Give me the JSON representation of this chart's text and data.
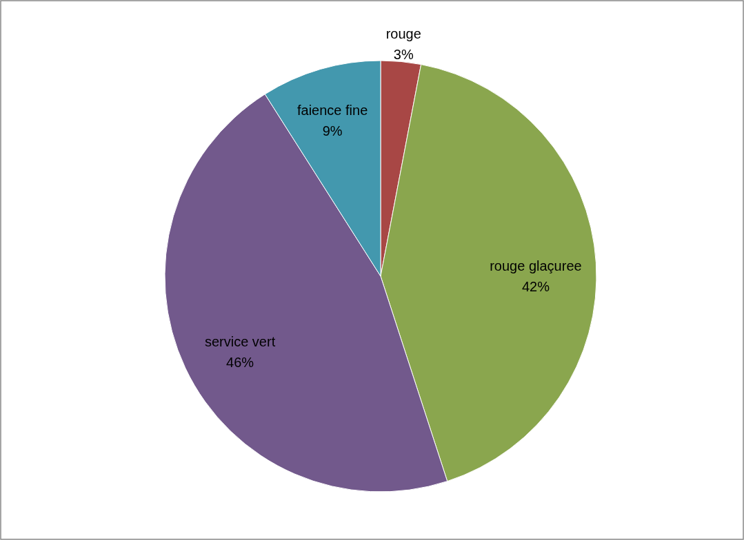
{
  "chart_data": {
    "type": "pie",
    "categories": [
      "rouge",
      "rouge glaçuree",
      "service vert",
      "faience fine"
    ],
    "values": [
      3,
      42,
      46,
      9
    ],
    "colors": [
      "#a84745",
      "#8aa64e",
      "#72598c",
      "#4398ae"
    ],
    "value_labels": [
      "3%",
      "42%",
      "46%",
      "9%"
    ]
  }
}
